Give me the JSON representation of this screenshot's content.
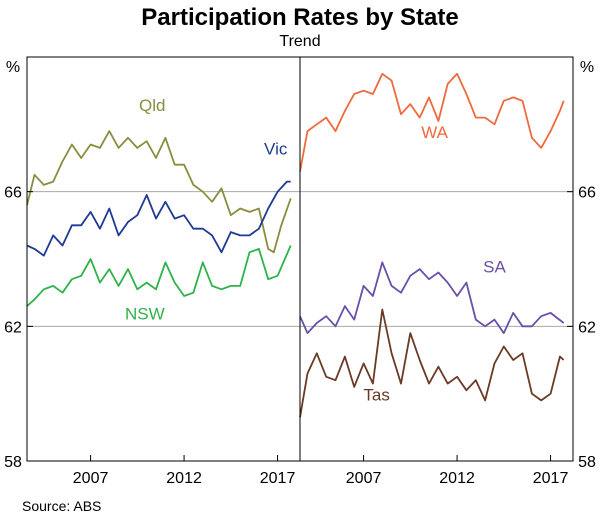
{
  "chart_data": {
    "type": "line",
    "title": "Participation Rates by State",
    "subtitle": "Trend",
    "unit_label": "%",
    "source": "Source:   ABS",
    "x_range": [
      2003.6,
      2018.2
    ],
    "ylim": [
      58,
      70
    ],
    "y_ticks": [
      58,
      62,
      66
    ],
    "x_ticks": [
      2007,
      2012,
      2017
    ],
    "grid_lines": [
      62,
      66
    ],
    "panels": [
      {
        "id": "left",
        "series": [
          {
            "name": "Qld",
            "color": "#8a8d3f",
            "label_at": [
              2010.3,
              68.4
            ],
            "points": [
              [
                2003.6,
                65.6
              ],
              [
                2004.0,
                66.5
              ],
              [
                2004.5,
                66.2
              ],
              [
                2005.0,
                66.3
              ],
              [
                2005.5,
                66.9
              ],
              [
                2006.0,
                67.4
              ],
              [
                2006.5,
                67.0
              ],
              [
                2007.0,
                67.4
              ],
              [
                2007.5,
                67.3
              ],
              [
                2008.0,
                67.8
              ],
              [
                2008.5,
                67.3
              ],
              [
                2009.0,
                67.6
              ],
              [
                2009.5,
                67.3
              ],
              [
                2010.0,
                67.5
              ],
              [
                2010.5,
                67.0
              ],
              [
                2011.0,
                67.6
              ],
              [
                2011.5,
                66.8
              ],
              [
                2012.0,
                66.8
              ],
              [
                2012.5,
                66.2
              ],
              [
                2013.0,
                66.0
              ],
              [
                2013.5,
                65.7
              ],
              [
                2014.0,
                66.1
              ],
              [
                2014.5,
                65.3
              ],
              [
                2015.0,
                65.5
              ],
              [
                2015.5,
                65.4
              ],
              [
                2016.0,
                65.5
              ],
              [
                2016.5,
                64.3
              ],
              [
                2016.8,
                64.2
              ],
              [
                2017.2,
                65.0
              ],
              [
                2017.7,
                65.8
              ]
            ]
          },
          {
            "name": "Vic",
            "color": "#1f3a93",
            "label_at": [
              2016.9,
              67.1
            ],
            "points": [
              [
                2003.6,
                64.4
              ],
              [
                2004.0,
                64.3
              ],
              [
                2004.5,
                64.1
              ],
              [
                2005.0,
                64.7
              ],
              [
                2005.5,
                64.4
              ],
              [
                2006.0,
                65.0
              ],
              [
                2006.5,
                65.0
              ],
              [
                2007.0,
                65.4
              ],
              [
                2007.5,
                64.9
              ],
              [
                2008.0,
                65.5
              ],
              [
                2008.5,
                64.7
              ],
              [
                2009.0,
                65.1
              ],
              [
                2009.5,
                65.3
              ],
              [
                2010.0,
                65.9
              ],
              [
                2010.5,
                65.2
              ],
              [
                2011.0,
                65.7
              ],
              [
                2011.5,
                65.2
              ],
              [
                2012.0,
                65.3
              ],
              [
                2012.5,
                64.9
              ],
              [
                2013.0,
                64.9
              ],
              [
                2013.5,
                64.7
              ],
              [
                2014.0,
                64.2
              ],
              [
                2014.5,
                64.8
              ],
              [
                2015.0,
                64.7
              ],
              [
                2015.5,
                64.7
              ],
              [
                2016.0,
                64.9
              ],
              [
                2016.5,
                65.5
              ],
              [
                2017.0,
                66.0
              ],
              [
                2017.5,
                66.3
              ],
              [
                2017.7,
                66.3
              ]
            ]
          },
          {
            "name": "NSW",
            "color": "#2fb24a",
            "label_at": [
              2009.9,
              62.2
            ],
            "points": [
              [
                2003.6,
                62.6
              ],
              [
                2004.0,
                62.8
              ],
              [
                2004.5,
                63.1
              ],
              [
                2005.0,
                63.2
              ],
              [
                2005.5,
                63.0
              ],
              [
                2006.0,
                63.4
              ],
              [
                2006.5,
                63.5
              ],
              [
                2007.0,
                64.0
              ],
              [
                2007.5,
                63.3
              ],
              [
                2008.0,
                63.7
              ],
              [
                2008.5,
                63.2
              ],
              [
                2009.0,
                63.7
              ],
              [
                2009.5,
                63.1
              ],
              [
                2010.0,
                63.3
              ],
              [
                2010.5,
                63.1
              ],
              [
                2011.0,
                63.9
              ],
              [
                2011.5,
                63.3
              ],
              [
                2012.0,
                62.9
              ],
              [
                2012.5,
                63.0
              ],
              [
                2013.0,
                63.9
              ],
              [
                2013.5,
                63.2
              ],
              [
                2014.0,
                63.1
              ],
              [
                2014.5,
                63.2
              ],
              [
                2015.0,
                63.2
              ],
              [
                2015.5,
                64.2
              ],
              [
                2016.0,
                64.3
              ],
              [
                2016.5,
                63.4
              ],
              [
                2017.0,
                63.5
              ],
              [
                2017.7,
                64.4
              ]
            ]
          }
        ]
      },
      {
        "id": "right",
        "series": [
          {
            "name": "WA",
            "color": "#ee6a3c",
            "label_at": [
              2010.8,
              67.6
            ],
            "points": [
              [
                2003.6,
                66.6
              ],
              [
                2004.0,
                67.8
              ],
              [
                2004.5,
                68.0
              ],
              [
                2005.0,
                68.2
              ],
              [
                2005.5,
                67.8
              ],
              [
                2006.0,
                68.4
              ],
              [
                2006.5,
                68.9
              ],
              [
                2007.0,
                69.0
              ],
              [
                2007.5,
                68.9
              ],
              [
                2008.0,
                69.5
              ],
              [
                2008.5,
                69.3
              ],
              [
                2009.0,
                68.3
              ],
              [
                2009.5,
                68.6
              ],
              [
                2010.0,
                68.2
              ],
              [
                2010.5,
                68.8
              ],
              [
                2011.0,
                68.1
              ],
              [
                2011.5,
                69.2
              ],
              [
                2012.0,
                69.5
              ],
              [
                2012.5,
                68.9
              ],
              [
                2013.0,
                68.2
              ],
              [
                2013.5,
                68.2
              ],
              [
                2014.0,
                68.0
              ],
              [
                2014.5,
                68.7
              ],
              [
                2015.0,
                68.8
              ],
              [
                2015.5,
                68.7
              ],
              [
                2016.0,
                67.6
              ],
              [
                2016.5,
                67.3
              ],
              [
                2017.0,
                67.8
              ],
              [
                2017.5,
                68.4
              ],
              [
                2017.7,
                68.7
              ]
            ]
          },
          {
            "name": "SA",
            "color": "#6a4fa8",
            "label_at": [
              2014.0,
              63.6
            ],
            "points": [
              [
                2003.6,
                62.3
              ],
              [
                2004.0,
                61.8
              ],
              [
                2004.5,
                62.1
              ],
              [
                2005.0,
                62.3
              ],
              [
                2005.5,
                62.0
              ],
              [
                2006.0,
                62.6
              ],
              [
                2006.5,
                62.2
              ],
              [
                2007.0,
                63.2
              ],
              [
                2007.5,
                62.9
              ],
              [
                2008.0,
                63.9
              ],
              [
                2008.5,
                63.2
              ],
              [
                2009.0,
                63.0
              ],
              [
                2009.5,
                63.5
              ],
              [
                2010.0,
                63.7
              ],
              [
                2010.5,
                63.4
              ],
              [
                2011.0,
                63.6
              ],
              [
                2011.5,
                63.3
              ],
              [
                2012.0,
                62.9
              ],
              [
                2012.5,
                63.3
              ],
              [
                2013.0,
                62.2
              ],
              [
                2013.5,
                62.0
              ],
              [
                2014.0,
                62.2
              ],
              [
                2014.5,
                61.8
              ],
              [
                2015.0,
                62.4
              ],
              [
                2015.5,
                62.0
              ],
              [
                2016.0,
                62.0
              ],
              [
                2016.5,
                62.3
              ],
              [
                2017.0,
                62.4
              ],
              [
                2017.7,
                62.1
              ]
            ]
          },
          {
            "name": "Tas",
            "color": "#6b3a24",
            "label_at": [
              2007.7,
              59.8
            ],
            "points": [
              [
                2003.6,
                59.3
              ],
              [
                2004.0,
                60.6
              ],
              [
                2004.5,
                61.2
              ],
              [
                2005.0,
                60.5
              ],
              [
                2005.5,
                60.4
              ],
              [
                2006.0,
                61.1
              ],
              [
                2006.5,
                60.2
              ],
              [
                2007.0,
                60.9
              ],
              [
                2007.5,
                60.3
              ],
              [
                2008.0,
                62.5
              ],
              [
                2008.5,
                61.2
              ],
              [
                2009.0,
                60.3
              ],
              [
                2009.5,
                61.8
              ],
              [
                2010.0,
                61.0
              ],
              [
                2010.5,
                60.3
              ],
              [
                2011.0,
                60.8
              ],
              [
                2011.5,
                60.3
              ],
              [
                2012.0,
                60.5
              ],
              [
                2012.5,
                60.1
              ],
              [
                2013.0,
                60.4
              ],
              [
                2013.5,
                59.8
              ],
              [
                2014.0,
                60.9
              ],
              [
                2014.5,
                61.4
              ],
              [
                2015.0,
                61.0
              ],
              [
                2015.5,
                61.2
              ],
              [
                2016.0,
                60.0
              ],
              [
                2016.5,
                59.8
              ],
              [
                2017.0,
                60.0
              ],
              [
                2017.5,
                61.1
              ],
              [
                2017.7,
                61.0
              ]
            ]
          }
        ]
      }
    ]
  }
}
